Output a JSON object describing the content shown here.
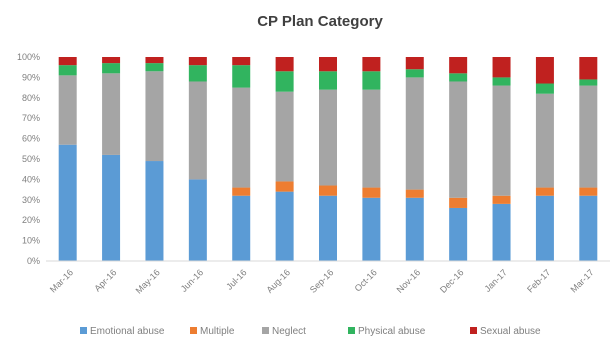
{
  "chart_data": {
    "type": "bar",
    "stacked": true,
    "percent": true,
    "title": "CP Plan Category",
    "xlabel": "",
    "ylabel": "",
    "ylim": [
      0,
      100
    ],
    "yticks": [
      "0%",
      "10%",
      "20%",
      "30%",
      "40%",
      "50%",
      "60%",
      "70%",
      "80%",
      "90%",
      "100%"
    ],
    "categories": [
      "Mar-16",
      "Apr-16",
      "May-16",
      "Jun-16",
      "Jul-16",
      "Aug-16",
      "Sep-16",
      "Oct-16",
      "Nov-16",
      "Dec-16",
      "Jan-17",
      "Feb-17",
      "Mar-17"
    ],
    "series": [
      {
        "name": "Emotional abuse",
        "color": "#5b9bd5",
        "values": [
          57,
          52,
          49,
          40,
          32,
          34,
          32,
          31,
          31,
          26,
          28,
          32,
          32
        ]
      },
      {
        "name": "Multiple",
        "color": "#ed7d31",
        "values": [
          0,
          0,
          0,
          0,
          4,
          5,
          5,
          5,
          4,
          5,
          4,
          4,
          4
        ]
      },
      {
        "name": "Neglect",
        "color": "#a5a5a5",
        "values": [
          34,
          40,
          44,
          48,
          49,
          44,
          47,
          48,
          55,
          57,
          54,
          46,
          50
        ]
      },
      {
        "name": "Physical abuse",
        "color": "#31b45f",
        "values": [
          5,
          5,
          4,
          8,
          11,
          10,
          9,
          9,
          4,
          4,
          4,
          5,
          3
        ]
      },
      {
        "name": "Sexual abuse",
        "color": "#c0211f",
        "values": [
          4,
          3,
          3,
          4,
          4,
          7,
          7,
          7,
          6,
          8,
          10,
          13,
          11
        ]
      }
    ],
    "grid": false,
    "legend": "bottom"
  }
}
